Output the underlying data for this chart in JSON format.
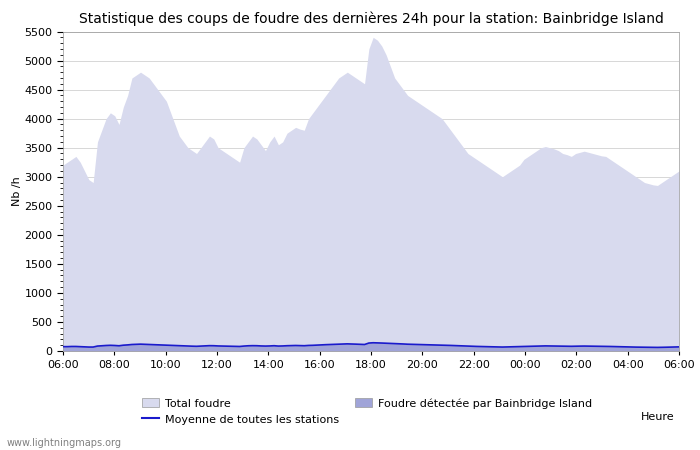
{
  "title": "Statistique des coups de foudre des dernières 24h pour la station: Bainbridge Island",
  "xlabel": "Heure",
  "ylabel": "Nb /h",
  "ylim": [
    0,
    5500
  ],
  "yticks": [
    0,
    500,
    1000,
    1500,
    2000,
    2500,
    3000,
    3500,
    4000,
    4500,
    5000,
    5500
  ],
  "xtick_labels": [
    "06:00",
    "08:00",
    "10:00",
    "12:00",
    "14:00",
    "16:00",
    "18:00",
    "20:00",
    "22:00",
    "00:00",
    "02:00",
    "04:00",
    "06:00"
  ],
  "watermark": "www.lightningmaps.org",
  "legend_labels": [
    "Total foudre",
    "Moyenne de toutes les stations",
    "Foudre détectée par Bainbridge Island"
  ],
  "bg_color": "#ffffff",
  "fill_total_color": "#d8daee",
  "fill_detected_color": "#a0a4d8",
  "line_moyenne_color": "#1a1acc",
  "grid_color": "#c8c8c8",
  "title_fontsize": 10,
  "axis_fontsize": 8,
  "tick_fontsize": 8,
  "total_foudre": [
    3200,
    3250,
    3300,
    3350,
    3250,
    3100,
    2950,
    2900,
    3600,
    3800,
    4000,
    4100,
    4050,
    3900,
    4200,
    4400,
    4700,
    4750,
    4800,
    4750,
    4700,
    4600,
    4500,
    4400,
    4300,
    4100,
    3900,
    3700,
    3600,
    3500,
    3450,
    3400,
    3500,
    3600,
    3700,
    3650,
    3500,
    3450,
    3400,
    3350,
    3300,
    3250,
    3500,
    3600,
    3700,
    3650,
    3550,
    3450,
    3600,
    3700,
    3550,
    3600,
    3750,
    3800,
    3850,
    3820,
    3800,
    4000,
    4100,
    4200,
    4300,
    4400,
    4500,
    4600,
    4700,
    4750,
    4800,
    4750,
    4700,
    4650,
    4600,
    5200,
    5400,
    5350,
    5250,
    5100,
    4900,
    4700,
    4600,
    4500,
    4400,
    4350,
    4300,
    4250,
    4200,
    4150,
    4100,
    4050,
    4000,
    3900,
    3800,
    3700,
    3600,
    3500,
    3400,
    3350,
    3300,
    3250,
    3200,
    3150,
    3100,
    3050,
    3000,
    3050,
    3100,
    3150,
    3200,
    3300,
    3350,
    3400,
    3450,
    3500,
    3520,
    3500,
    3480,
    3450,
    3400,
    3380,
    3350,
    3400,
    3420,
    3440,
    3420,
    3400,
    3380,
    3360,
    3350,
    3300,
    3250,
    3200,
    3150,
    3100,
    3050,
    3000,
    2950,
    2900,
    2880,
    2860,
    2850,
    2900,
    2950,
    3000,
    3050,
    3100
  ],
  "detected": [
    80,
    80,
    85,
    85,
    80,
    75,
    70,
    70,
    90,
    95,
    100,
    105,
    100,
    95,
    110,
    115,
    120,
    125,
    128,
    125,
    122,
    118,
    115,
    112,
    108,
    105,
    100,
    95,
    92,
    90,
    88,
    86,
    90,
    95,
    98,
    96,
    92,
    90,
    88,
    86,
    84,
    82,
    90,
    95,
    98,
    96,
    92,
    90,
    92,
    96,
    90,
    92,
    96,
    98,
    100,
    98,
    96,
    102,
    105,
    108,
    112,
    115,
    118,
    122,
    125,
    128,
    130,
    128,
    125,
    122,
    118,
    145,
    150,
    148,
    145,
    142,
    138,
    135,
    132,
    128,
    124,
    122,
    120,
    118,
    116,
    114,
    112,
    110,
    108,
    105,
    102,
    98,
    95,
    92,
    88,
    86,
    84,
    82,
    80,
    78,
    76,
    74,
    72,
    74,
    76,
    78,
    80,
    84,
    86,
    88,
    90,
    92,
    93,
    92,
    91,
    90,
    88,
    87,
    86,
    88,
    89,
    90,
    89,
    88,
    87,
    86,
    85,
    83,
    81,
    79,
    77,
    75,
    73,
    71,
    70,
    68,
    67,
    66,
    65,
    67,
    69,
    71,
    73,
    75
  ],
  "moyenne": [
    75,
    75,
    78,
    78,
    75,
    72,
    68,
    68,
    85,
    90,
    95,
    98,
    95,
    90,
    100,
    105,
    112,
    115,
    118,
    115,
    112,
    108,
    105,
    102,
    100,
    98,
    94,
    90,
    87,
    85,
    83,
    81,
    85,
    90,
    92,
    91,
    87,
    85,
    83,
    81,
    79,
    78,
    85,
    90,
    92,
    91,
    87,
    85,
    87,
    91,
    85,
    87,
    91,
    93,
    95,
    93,
    91,
    96,
    98,
    102,
    106,
    109,
    112,
    115,
    118,
    121,
    123,
    121,
    118,
    115,
    112,
    137,
    142,
    140,
    137,
    134,
    130,
    127,
    124,
    121,
    117,
    115,
    113,
    111,
    109,
    107,
    105,
    103,
    101,
    98,
    96,
    93,
    90,
    87,
    83,
    81,
    79,
    77,
    75,
    74,
    72,
    70,
    68,
    70,
    72,
    74,
    75,
    79,
    81,
    83,
    85,
    87,
    88,
    87,
    86,
    85,
    83,
    82,
    81,
    83,
    84,
    85,
    84,
    83,
    82,
    81,
    80,
    78,
    76,
    75,
    73,
    71,
    69,
    67,
    66,
    64,
    63,
    62,
    62,
    63,
    65,
    67,
    69,
    71
  ]
}
